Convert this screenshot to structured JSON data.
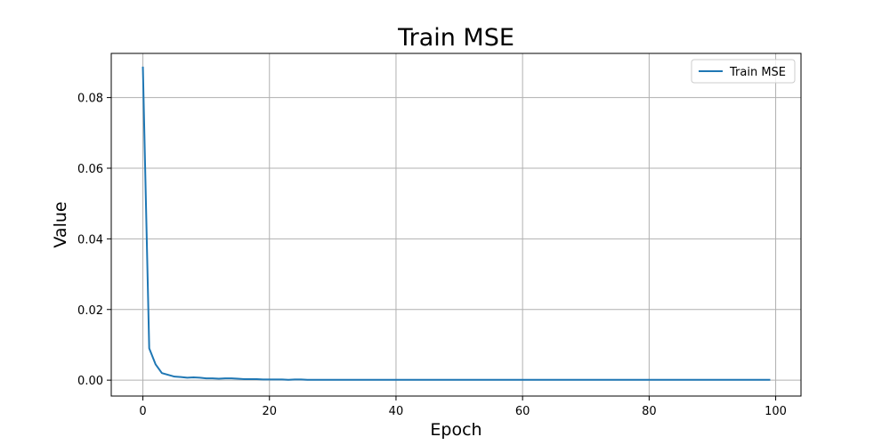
{
  "chart_data": {
    "type": "line",
    "title": "Train MSE",
    "xlabel": "Epoch",
    "ylabel": "Value",
    "xlim": [
      -5,
      104
    ],
    "ylim": [
      -0.0045,
      0.0925
    ],
    "xticks": [
      0,
      20,
      40,
      60,
      80,
      100
    ],
    "xtick_labels": [
      "0",
      "20",
      "40",
      "60",
      "80",
      "100"
    ],
    "yticks": [
      0.0,
      0.02,
      0.04,
      0.06,
      0.08
    ],
    "ytick_labels": [
      "0.00",
      "0.02",
      "0.04",
      "0.06",
      "0.08"
    ],
    "grid": true,
    "legend_position": "top-right",
    "series": [
      {
        "name": "Train MSE",
        "color": "#1f77b4",
        "x": [
          0,
          1,
          2,
          3,
          4,
          5,
          6,
          7,
          8,
          9,
          10,
          11,
          12,
          13,
          14,
          15,
          16,
          17,
          18,
          19,
          20,
          21,
          22,
          23,
          24,
          25,
          26,
          27,
          28,
          29,
          30,
          31,
          32,
          33,
          34,
          35,
          36,
          37,
          38,
          39,
          40,
          41,
          42,
          43,
          44,
          45,
          46,
          47,
          48,
          49,
          50,
          51,
          52,
          53,
          54,
          55,
          56,
          57,
          58,
          59,
          60,
          61,
          62,
          63,
          64,
          65,
          66,
          67,
          68,
          69,
          70,
          71,
          72,
          73,
          74,
          75,
          76,
          77,
          78,
          79,
          80,
          81,
          82,
          83,
          84,
          85,
          86,
          87,
          88,
          89,
          90,
          91,
          92,
          93,
          94,
          95,
          96,
          97,
          98,
          99
        ],
        "values": [
          0.0885,
          0.009,
          0.0045,
          0.002,
          0.0015,
          0.001,
          0.0009,
          0.0007,
          0.0008,
          0.0007,
          0.0005,
          0.0005,
          0.0004,
          0.0005,
          0.0005,
          0.0004,
          0.0003,
          0.0003,
          0.0003,
          0.0002,
          0.0002,
          0.0002,
          0.0002,
          0.0001,
          0.0002,
          0.0002,
          0.0001,
          0.0001,
          0.0001,
          0.0001,
          0.0001,
          0.0001,
          0.0001,
          0.0001,
          0.0001,
          0.0001,
          0.0001,
          0.0001,
          0.0001,
          0.0001,
          0.0001,
          0.0001,
          0.0001,
          0.0001,
          0.0001,
          0.0001,
          0.0001,
          0.0001,
          0.0001,
          0.0001,
          0.0001,
          0.0001,
          0.0001,
          0.0001,
          0.0001,
          0.0001,
          0.0001,
          0.0001,
          0.0001,
          0.0001,
          0.0001,
          0.0001,
          0.0001,
          0.0001,
          0.0001,
          0.0001,
          0.0001,
          0.0001,
          0.0001,
          0.0001,
          0.0001,
          0.0001,
          0.0001,
          0.0001,
          0.0001,
          0.0001,
          0.0001,
          0.0001,
          0.0001,
          0.0001,
          0.0001,
          0.0001,
          0.0001,
          0.0001,
          0.0001,
          0.0001,
          0.0001,
          0.0001,
          0.0001,
          0.0001,
          0.0001,
          0.0001,
          0.0001,
          0.0001,
          0.0001,
          0.0001,
          0.0001,
          0.0001,
          0.0001,
          0.0001
        ]
      }
    ]
  }
}
